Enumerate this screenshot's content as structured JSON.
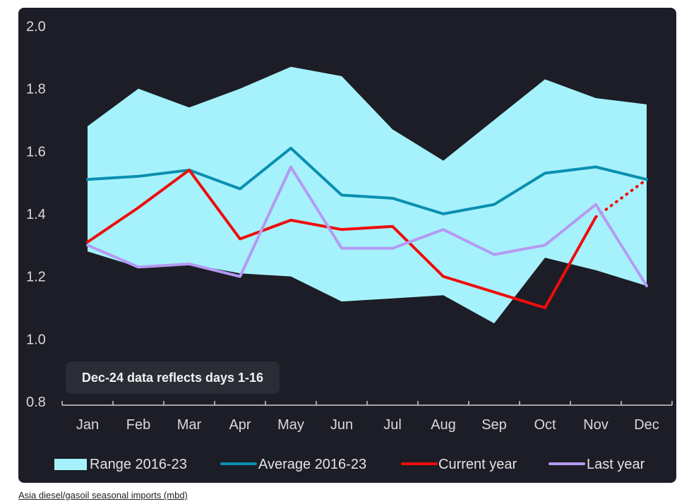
{
  "note": "Dec-24 data reflects days 1-16",
  "caption": "Asia diesel/gasoil seasonal imports (mbd)",
  "colors": {
    "background": "#1c1d26",
    "range": "#a6f2fc",
    "average": "#0a8fb0",
    "current": "#ef0c0c",
    "last": "#b49af2",
    "text": "#d9d9d9"
  },
  "chart_data": {
    "type": "line",
    "title": "",
    "xlabel": "",
    "ylabel": "",
    "ylim": [
      0.8,
      2.0
    ],
    "yticks": [
      "0.8",
      "1.0",
      "1.2",
      "1.4",
      "1.6",
      "1.8",
      "2.0"
    ],
    "categories": [
      "Jan",
      "Feb",
      "Mar",
      "Apr",
      "May",
      "Jun",
      "Jul",
      "Aug",
      "Sep",
      "Oct",
      "Nov",
      "Dec"
    ],
    "range": {
      "name": "Range 2016-23",
      "min": [
        1.28,
        1.23,
        1.24,
        1.21,
        1.2,
        1.12,
        1.13,
        1.14,
        1.05,
        1.26,
        1.22,
        1.17
      ],
      "max": [
        1.68,
        1.8,
        1.74,
        1.8,
        1.87,
        1.84,
        1.67,
        1.57,
        1.7,
        1.83,
        1.77,
        1.75
      ]
    },
    "series": [
      {
        "name": "Average 2016-23",
        "key": "average",
        "values": [
          1.51,
          1.52,
          1.54,
          1.48,
          1.61,
          1.46,
          1.45,
          1.4,
          1.43,
          1.53,
          1.55,
          1.51
        ]
      },
      {
        "name": "Current year",
        "key": "current",
        "values": [
          1.31,
          1.42,
          1.54,
          1.32,
          1.38,
          1.35,
          1.36,
          1.2,
          1.15,
          1.1,
          1.39,
          1.51
        ],
        "dotted_last_segment": true
      },
      {
        "name": "Last year",
        "key": "last",
        "values": [
          1.3,
          1.23,
          1.24,
          1.2,
          1.55,
          1.29,
          1.29,
          1.35,
          1.27,
          1.3,
          1.43,
          1.17
        ]
      }
    ],
    "legend": {
      "position": "bottom",
      "items": [
        {
          "label": "Range 2016-23",
          "key": "range"
        },
        {
          "label": "Average 2016-23",
          "key": "average"
        },
        {
          "label": "Current year",
          "key": "current"
        },
        {
          "label": "Last year",
          "key": "last"
        }
      ]
    }
  }
}
